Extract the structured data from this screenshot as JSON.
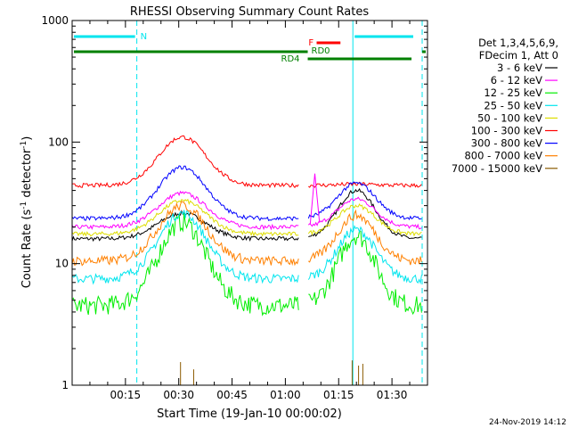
{
  "chart_data": {
    "type": "line",
    "title": "RHESSI Observing Summary Count Rates",
    "xlabel": "Start Time (19-Jan-10 00:00:02)",
    "ylabel_main": "Count Rate (s",
    "ylabel_sup1": "-1",
    "ylabel_mid": " detector",
    "ylabel_sup2": "-1",
    "ylabel_end": ")",
    "yscale": "log",
    "ylim": [
      1,
      1000
    ],
    "y_ticks": [
      {
        "v": 1,
        "label": "1"
      },
      {
        "v": 10,
        "label": "10"
      },
      {
        "v": 100,
        "label": "100"
      },
      {
        "v": 1000,
        "label": "1000"
      }
    ],
    "xlim_min": [
      0,
      100
    ],
    "x_ticks": [
      {
        "v": 15,
        "label": "00:15"
      },
      {
        "v": 30,
        "label": "00:30"
      },
      {
        "v": 45,
        "label": "00:45"
      },
      {
        "v": 60,
        "label": "01:00"
      },
      {
        "v": 75,
        "label": "01:15"
      },
      {
        "v": 90,
        "label": "01:30"
      }
    ],
    "legend_header": [
      "Det 1,3,4,5,6,9,",
      "FDecim 1, Att 0"
    ],
    "series": [
      {
        "name": "3 - 6 keV",
        "color": "#000000",
        "night": 16,
        "peak1": 26,
        "peak2": 40
      },
      {
        "name": "6 - 12 keV",
        "color": "#ff00ff",
        "night": 20,
        "peak1": 38,
        "peak2": 34
      },
      {
        "name": "12 - 25 keV",
        "color": "#00ee00",
        "night": 4.5,
        "peak1": 22,
        "peak2": 17
      },
      {
        "name": "25 - 50 keV",
        "color": "#00e5ee",
        "night": 7.5,
        "peak1": 26,
        "peak2": 19
      },
      {
        "name": "50 - 100 keV",
        "color": "#dddd00",
        "night": 17.5,
        "peak1": 33,
        "peak2": 30
      },
      {
        "name": "100 - 300 keV",
        "color": "#ff0000",
        "night": 44,
        "peak1": 110,
        "peak2": 45
      },
      {
        "name": "300 - 800 keV",
        "color": "#0000ff",
        "night": 23.5,
        "peak1": 62,
        "peak2": 46
      },
      {
        "name": "800 - 7000 keV",
        "color": "#ff8000",
        "night": 10.5,
        "peak1": 30,
        "peak2": 25
      },
      {
        "name": "7000 - 15000 keV",
        "color": "#8b5a00",
        "night": 1,
        "peak1": 1,
        "peak2": 1
      }
    ],
    "annotations": {
      "night": {
        "label": "N",
        "color": "#00e5ee"
      },
      "saa": {
        "label": "RD4",
        "color": "#008000"
      },
      "flare": {
        "label": "F",
        "color": "#ff0000"
      },
      "rd0": {
        "label": "RD0",
        "color": "#008000"
      }
    },
    "grid": false,
    "legend_position": "right"
  },
  "footer": {
    "date": "24-Nov-2019 14:12"
  }
}
